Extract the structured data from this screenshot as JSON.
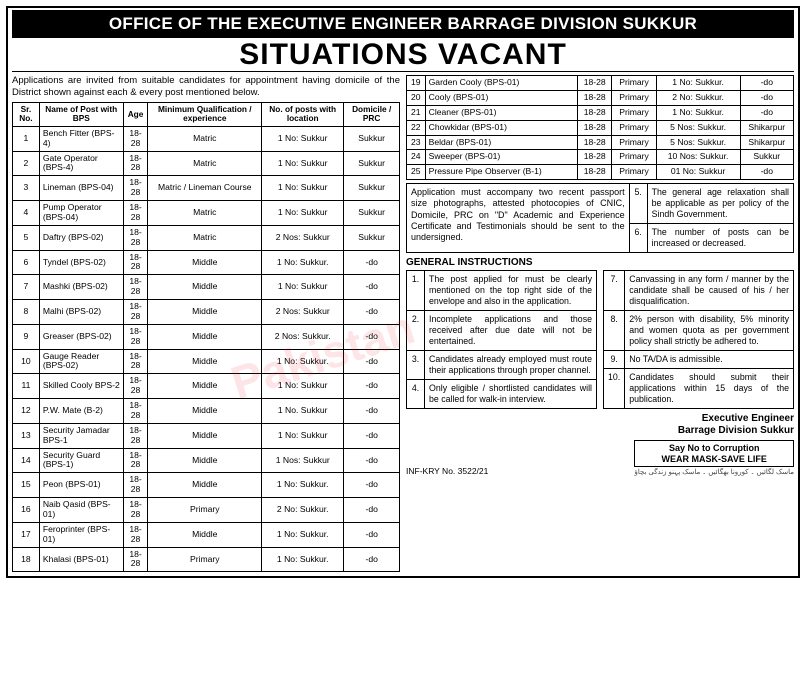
{
  "header": {
    "office": "OFFICE OF THE EXECUTIVE ENGINEER BARRAGE DIVISION SUKKUR",
    "title": "SITUATIONS VACANT"
  },
  "intro": "Applications are invited from suitable candidates for appointment having domicile of the District shown against each & every post mentioned below.",
  "columns": {
    "sr": "Sr. No.",
    "post": "Name of Post with BPS",
    "age": "Age",
    "qual": "Minimum Qualification / experience",
    "loc": "No. of posts with location",
    "dom": "Domicile / PRC"
  },
  "jobs_left": [
    {
      "sr": "1",
      "post": "Bench Fitter (BPS-4)",
      "age": "18-28",
      "qual": "Matric",
      "loc": "1 No: Sukkur",
      "dom": "Sukkur"
    },
    {
      "sr": "2",
      "post": "Gate Operator (BPS-4)",
      "age": "18-28",
      "qual": "Matric",
      "loc": "1 No: Sukkur",
      "dom": "Sukkur"
    },
    {
      "sr": "3",
      "post": "Lineman (BPS-04)",
      "age": "18-28",
      "qual": "Matric / Lineman Course",
      "loc": "1 No: Sukkur",
      "dom": "Sukkur"
    },
    {
      "sr": "4",
      "post": "Pump Operator (BPS-04)",
      "age": "18-28",
      "qual": "Matric",
      "loc": "1 No: Sukkur",
      "dom": "Sukkur"
    },
    {
      "sr": "5",
      "post": "Daftry (BPS-02)",
      "age": "18-28",
      "qual": "Matric",
      "loc": "2 Nos: Sukkur",
      "dom": "Sukkur"
    },
    {
      "sr": "6",
      "post": "Tyndel (BPS-02)",
      "age": "18-28",
      "qual": "Middle",
      "loc": "1 No: Sukkur.",
      "dom": "-do"
    },
    {
      "sr": "7",
      "post": "Mashki (BPS-02)",
      "age": "18-28",
      "qual": "Middle",
      "loc": "1 No: Sukkur",
      "dom": "-do"
    },
    {
      "sr": "8",
      "post": "Malhi (BPS-02)",
      "age": "18-28",
      "qual": "Middle",
      "loc": "2 Nos: Sukkur",
      "dom": "-do"
    },
    {
      "sr": "9",
      "post": "Greaser (BPS-02)",
      "age": "18-28",
      "qual": "Middle",
      "loc": "2 Nos: Sukkur.",
      "dom": "-do"
    },
    {
      "sr": "10",
      "post": "Gauge Reader (BPS-02)",
      "age": "18-28",
      "qual": "Middle",
      "loc": "1 No: Sukkur.",
      "dom": "-do"
    },
    {
      "sr": "11",
      "post": "Skilled Cooly BPS-2",
      "age": "18-28",
      "qual": "Middle",
      "loc": "1 No: Sukkur",
      "dom": "-do"
    },
    {
      "sr": "12",
      "post": "P.W. Mate (B-2)",
      "age": "18-28",
      "qual": "Middle",
      "loc": "1 No. Sukkur",
      "dom": "-do"
    },
    {
      "sr": "13",
      "post": "Security Jamadar BPS-1",
      "age": "18-28",
      "qual": "Middle",
      "loc": "1 No: Sukkur",
      "dom": "-do"
    },
    {
      "sr": "14",
      "post": "Security Guard (BPS-1)",
      "age": "18-28",
      "qual": "Middle",
      "loc": "1 Nos: Sukkur",
      "dom": "-do"
    },
    {
      "sr": "15",
      "post": "Peon (BPS-01)",
      "age": "18-28",
      "qual": "Middle",
      "loc": "1 No: Sukkur.",
      "dom": "-do"
    },
    {
      "sr": "16",
      "post": "Naib Qasid (BPS-01)",
      "age": "18-28",
      "qual": "Primary",
      "loc": "2 No: Sukkur.",
      "dom": "-do"
    },
    {
      "sr": "17",
      "post": "Feroprinter (BPS-01)",
      "age": "18-28",
      "qual": "Middle",
      "loc": "1 No: Sukkur.",
      "dom": "-do"
    },
    {
      "sr": "18",
      "post": "Khalasi (BPS-01)",
      "age": "18-28",
      "qual": "Primary",
      "loc": "1 No: Sukkur.",
      "dom": "-do"
    }
  ],
  "jobs_right": [
    {
      "sr": "19",
      "post": "Garden Cooly (BPS-01)",
      "age": "18-28",
      "qual": "Primary",
      "loc": "1 No: Sukkur.",
      "dom": "-do"
    },
    {
      "sr": "20",
      "post": "Cooly (BPS-01)",
      "age": "18-28",
      "qual": "Primary",
      "loc": "2 No: Sukkur.",
      "dom": "-do"
    },
    {
      "sr": "21",
      "post": "Cleaner (BPS-01)",
      "age": "18-28",
      "qual": "Primary",
      "loc": "1 No: Sukkur.",
      "dom": "-do"
    },
    {
      "sr": "22",
      "post": "Chowkidar (BPS-01)",
      "age": "18-28",
      "qual": "Primary",
      "loc": "5 Nos: Sukkur.",
      "dom": "Shikarpur"
    },
    {
      "sr": "23",
      "post": "Beldar (BPS-01)",
      "age": "18-28",
      "qual": "Primary",
      "loc": "5 Nos: Sukkur.",
      "dom": "Shikarpur"
    },
    {
      "sr": "24",
      "post": "Sweeper (BPS-01)",
      "age": "18-28",
      "qual": "Primary",
      "loc": "10 Nos: Sukkur.",
      "dom": "Sukkur"
    },
    {
      "sr": "25",
      "post": "Pressure Pipe Observer (B-1)",
      "age": "18-28",
      "qual": "Primary",
      "loc": "01 No: Sukkur",
      "dom": "-do"
    }
  ],
  "app_note": "Application must accompany two recent passport size photographs, attested photocopies of CNIC, Domicile, PRC on \"D\" Academic and Experience Certificate and Testimonials should be sent to the undersigned.",
  "gi_title": "GENERAL INSTRUCTIONS",
  "gi_left": [
    {
      "n": "1.",
      "t": "The post applied for must be clearly mentioned on the top right side of the envelope and also in the application."
    },
    {
      "n": "2.",
      "t": "Incomplete applications and those received after due date will not be entertained."
    },
    {
      "n": "3.",
      "t": "Candidates already employed must route their applications through proper channel."
    },
    {
      "n": "4.",
      "t": "Only eligible / shortlisted candidates will be called for walk-in interview."
    }
  ],
  "gi_right": [
    {
      "n": "5.",
      "t": "The general age relaxation shall be applicable as per policy of the Sindh Government."
    },
    {
      "n": "6.",
      "t": "The number of posts can be increased or decreased."
    },
    {
      "n": "7.",
      "t": "Canvassing in any form / manner by the candidate shall be caused of his / her disqualification."
    },
    {
      "n": "8.",
      "t": "2% person with disability, 5% minority and women quota as per government policy shall strictly be adhered to."
    },
    {
      "n": "9.",
      "t": "No TA/DA is admissible."
    },
    {
      "n": "10.",
      "t": "Candidates should submit their applications within 15 days of the publication."
    }
  ],
  "signature": {
    "l1": "Executive Engineer",
    "l2": "Barrage Division Sukkur"
  },
  "inf": "INF-KRY No. 3522/21",
  "sayno": {
    "l1": "Say No to Corruption",
    "l2": "WEAR MASK-SAVE LIFE"
  },
  "watermark": "Pakistan"
}
